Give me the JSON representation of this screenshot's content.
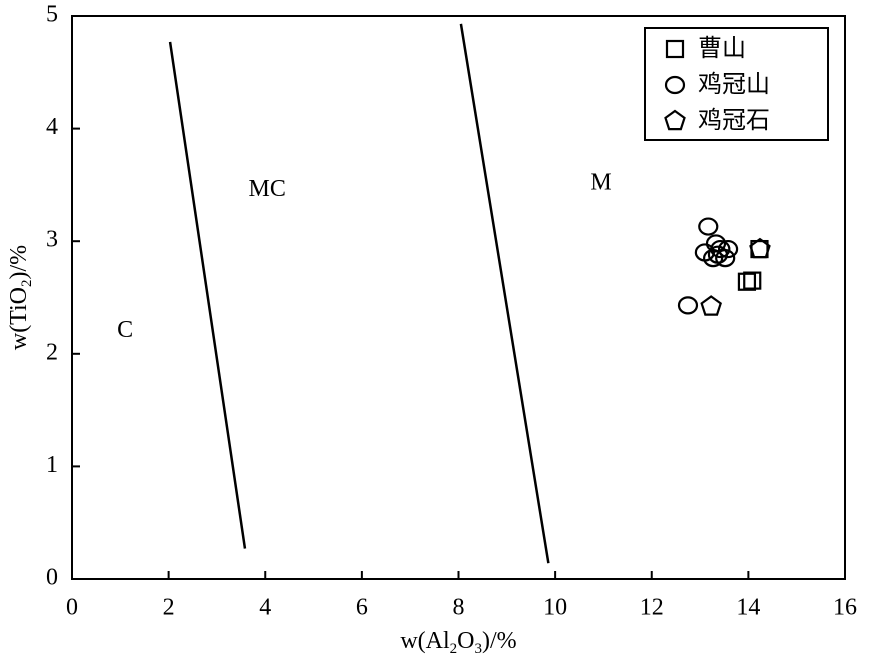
{
  "chart_data": {
    "type": "scatter",
    "x_label": [
      "w(Al",
      "2",
      "O",
      "3",
      ")/%"
    ],
    "y_label": [
      "w(TiO",
      "2",
      ")/%"
    ],
    "xlim": [
      0,
      16
    ],
    "ylim": [
      0,
      5
    ],
    "xticks": [
      0,
      2,
      4,
      6,
      8,
      10,
      12,
      14,
      16
    ],
    "yticks": [
      0,
      1,
      2,
      3,
      4,
      5
    ],
    "legend": "upper right",
    "color": "#000000",
    "series": [
      {
        "name": "曹山",
        "marker": "square",
        "x": [
          13.97,
          14.08,
          14.23
        ],
        "y": [
          2.64,
          2.65,
          2.93
        ]
      },
      {
        "name": "鸡冠山",
        "marker": "circle",
        "x": [
          13.17,
          13.33,
          13.1,
          13.42,
          13.58,
          13.27,
          13.52,
          12.75,
          13.37
        ],
        "y": [
          3.13,
          2.98,
          2.9,
          2.93,
          2.93,
          2.85,
          2.85,
          2.43,
          2.88
        ]
      },
      {
        "name": "鸡冠石",
        "marker": "pentagon",
        "x": [
          13.23,
          14.24
        ],
        "y": [
          2.42,
          2.93
        ]
      }
    ],
    "boundaries": [
      {
        "x": [
          2.03,
          3.58
        ],
        "y": [
          4.77,
          0.27
        ]
      },
      {
        "x": [
          8.05,
          9.86
        ],
        "y": [
          4.93,
          0.14
        ]
      }
    ],
    "annotations": [
      {
        "text": "C",
        "x": 1.1,
        "y": 2.2
      },
      {
        "text": "MC",
        "x": 4.04,
        "y": 3.45
      },
      {
        "text": "M",
        "x": 10.95,
        "y": 3.51
      }
    ]
  }
}
